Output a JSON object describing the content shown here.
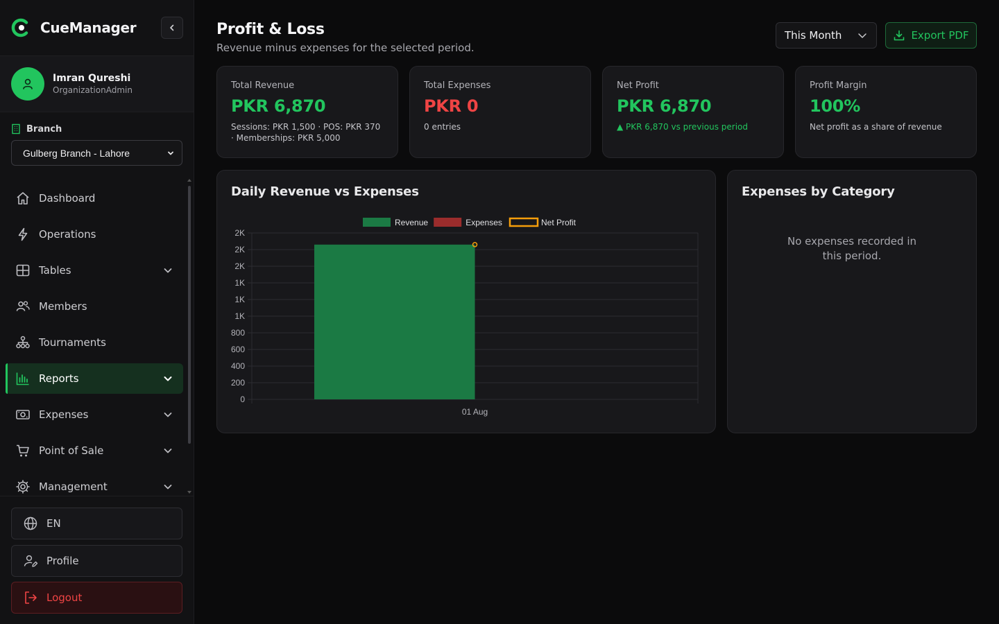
{
  "sidebar": {
    "brand": "CueManager",
    "user": {
      "name": "Imran Qureshi",
      "role": "OrganizationAdmin"
    },
    "branch": {
      "label": "Branch",
      "selected": "Gulberg Branch - Lahore"
    },
    "nav": [
      {
        "label": "Dashboard",
        "icon": "home-icon"
      },
      {
        "label": "Operations",
        "icon": "lightning-icon"
      },
      {
        "label": "Tables",
        "icon": "grid-icon",
        "expandable": true
      },
      {
        "label": "Members",
        "icon": "users-icon"
      },
      {
        "label": "Tournaments",
        "icon": "hierarchy-icon"
      },
      {
        "label": "Reports",
        "icon": "bar-chart-icon",
        "expandable": true,
        "active": true
      },
      {
        "label": "Expenses",
        "icon": "cash-icon",
        "expandable": true
      },
      {
        "label": "Point of Sale",
        "icon": "cart-icon",
        "expandable": true
      },
      {
        "label": "Management",
        "icon": "gear-icon",
        "expandable": true
      }
    ],
    "footer": {
      "language": "EN",
      "profile": "Profile",
      "logout": "Logout"
    }
  },
  "header": {
    "title": "Profit & Loss",
    "subtitle": "Revenue minus expenses for the selected period.",
    "period": "This Month",
    "export_label": "Export PDF"
  },
  "cards": [
    {
      "label": "Total Revenue",
      "value": "PKR 6,870",
      "note": "Sessions: PKR 1,500 · POS: PKR 370 · Memberships: PKR 5,000",
      "tone": "green"
    },
    {
      "label": "Total Expenses",
      "value": "PKR 0",
      "note": "0 entries",
      "tone": "red"
    },
    {
      "label": "Net Profit",
      "value": "PKR 6,870",
      "note": "▲ PKR 6,870 vs previous period",
      "tone": "green"
    },
    {
      "label": "Profit Margin",
      "value": "100%",
      "note": "Net profit as a share of revenue",
      "tone": "green"
    }
  ],
  "expenses_panel": {
    "title": "Expenses by Category",
    "empty": "No expenses recorded in this period."
  },
  "chart_data": {
    "type": "bar",
    "title": "Daily Revenue vs Expenses",
    "categories": [
      "01 Aug"
    ],
    "series": [
      {
        "name": "Revenue",
        "kind": "bar",
        "values": [
          1860
        ],
        "color": "#1b7a44"
      },
      {
        "name": "Expenses",
        "kind": "bar",
        "values": [
          0
        ],
        "color": "#9b2c2c"
      },
      {
        "name": "Net Profit",
        "kind": "line",
        "values": [
          1860
        ],
        "color": "#f59e0b"
      }
    ],
    "ylim": [
      0,
      2000
    ],
    "y_ticks": [
      0,
      200,
      400,
      600,
      800,
      1000,
      1200,
      1400,
      1600,
      1800,
      2000
    ],
    "y_tick_labels": [
      "0",
      "200",
      "400",
      "600",
      "800",
      "1K",
      "1K",
      "1K",
      "2K",
      "2K",
      "2K"
    ],
    "legend": "top-center",
    "grid": true
  },
  "colors": {
    "accent": "#22c55e",
    "danger": "#ef4444",
    "warning": "#f59e0b"
  }
}
